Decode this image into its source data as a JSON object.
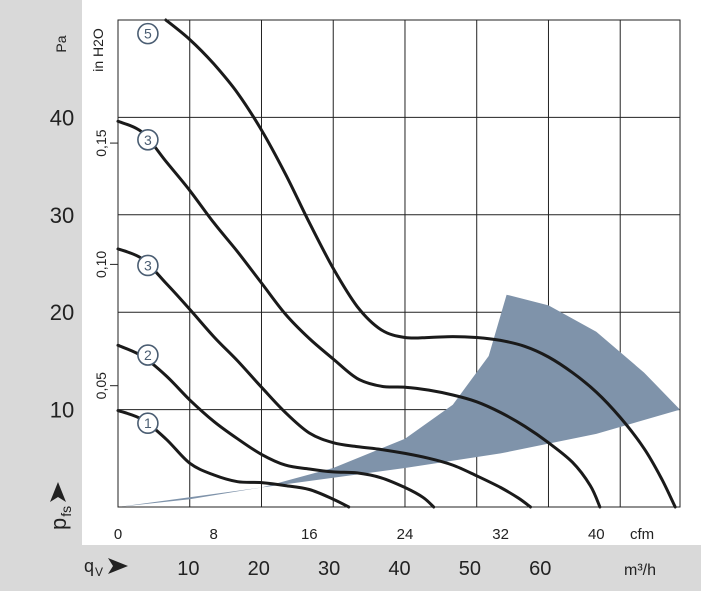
{
  "chart_data": {
    "type": "line",
    "title": "",
    "y_unit_left": "Pa",
    "y_unit_inner": "in H2O",
    "x_unit_cfm": "cfm",
    "x_unit_m3h": "m³/h",
    "y_symbol": "p",
    "y_symbol_sub": "fs",
    "x_symbol": "q",
    "x_symbol_sub": "V",
    "x_cfm_range": [
      0,
      47
    ],
    "y_pa_range": [
      0,
      50
    ],
    "cfm_ticks": [
      "0",
      "8",
      "16",
      "24",
      "32",
      "40"
    ],
    "m3h_ticks": [
      "10",
      "20",
      "30",
      "40",
      "50",
      "60"
    ],
    "pa_ticks": [
      "10",
      "20",
      "30",
      "40"
    ],
    "inh2o_ticks": [
      "0,05",
      "0,10",
      "0,15"
    ],
    "grid": true,
    "shaded_region_color": "#7f93aa",
    "series": [
      {
        "name": "1",
        "points": [
          [
            0,
            9.9
          ],
          [
            2,
            9
          ],
          [
            4,
            7
          ],
          [
            6,
            4.5
          ],
          [
            8,
            3.3
          ],
          [
            10,
            2.6
          ],
          [
            12,
            2.5
          ],
          [
            14,
            2.2
          ],
          [
            16,
            1.8
          ],
          [
            18,
            0.8
          ],
          [
            19.3,
            0
          ]
        ]
      },
      {
        "name": "2",
        "points": [
          [
            0,
            16.6
          ],
          [
            2,
            15.5
          ],
          [
            4,
            13.5
          ],
          [
            6,
            11
          ],
          [
            8,
            8.8
          ],
          [
            10,
            7
          ],
          [
            12,
            5.4
          ],
          [
            14,
            4.3
          ],
          [
            16,
            3.9
          ],
          [
            18,
            3.6
          ],
          [
            20,
            3.5
          ],
          [
            22,
            3
          ],
          [
            24,
            2
          ],
          [
            25.5,
            1
          ],
          [
            26.4,
            0
          ]
        ]
      },
      {
        "name": "3",
        "points": [
          [
            0,
            26.5
          ],
          [
            2,
            25.5
          ],
          [
            4,
            23
          ],
          [
            6,
            20.3
          ],
          [
            8,
            17.5
          ],
          [
            10,
            15
          ],
          [
            12,
            12.3
          ],
          [
            14,
            9.7
          ],
          [
            16,
            7.6
          ],
          [
            18,
            6.6
          ],
          [
            20,
            6.2
          ],
          [
            22,
            5.9
          ],
          [
            24,
            5.5
          ],
          [
            26,
            5
          ],
          [
            28,
            4.3
          ],
          [
            30,
            3.2
          ],
          [
            32,
            2
          ],
          [
            33.5,
            0.9
          ],
          [
            34.5,
            0
          ]
        ]
      },
      {
        "name": "3",
        "points": [
          [
            0,
            39.6
          ],
          [
            2,
            38.5
          ],
          [
            4,
            35.5
          ],
          [
            6,
            32.5
          ],
          [
            8,
            29.2
          ],
          [
            10,
            26.2
          ],
          [
            12,
            23
          ],
          [
            14,
            19.8
          ],
          [
            16,
            17.3
          ],
          [
            18,
            15.2
          ],
          [
            20,
            13.2
          ],
          [
            22,
            12.4
          ],
          [
            24,
            12.3
          ],
          [
            26,
            12
          ],
          [
            28,
            11.5
          ],
          [
            30,
            10.8
          ],
          [
            32,
            9.7
          ],
          [
            34,
            8.3
          ],
          [
            36,
            6.6
          ],
          [
            38,
            4.6
          ],
          [
            39.5,
            2.2
          ],
          [
            40.3,
            0
          ]
        ]
      },
      {
        "name": "5",
        "points": [
          [
            4,
            50
          ],
          [
            6,
            48
          ],
          [
            8,
            45.5
          ],
          [
            10,
            42.5
          ],
          [
            12,
            38.7
          ],
          [
            14,
            34.2
          ],
          [
            16,
            29.2
          ],
          [
            18,
            24.5
          ],
          [
            20,
            20.6
          ],
          [
            22,
            18.2
          ],
          [
            24,
            17.4
          ],
          [
            26,
            17.4
          ],
          [
            28,
            17.5
          ],
          [
            30,
            17.4
          ],
          [
            32,
            17.1
          ],
          [
            34,
            16.5
          ],
          [
            36,
            15.4
          ],
          [
            38,
            13.8
          ],
          [
            40,
            11.8
          ],
          [
            42,
            9.2
          ],
          [
            44,
            6
          ],
          [
            45.5,
            2.8
          ],
          [
            46.6,
            0
          ]
        ]
      }
    ]
  }
}
